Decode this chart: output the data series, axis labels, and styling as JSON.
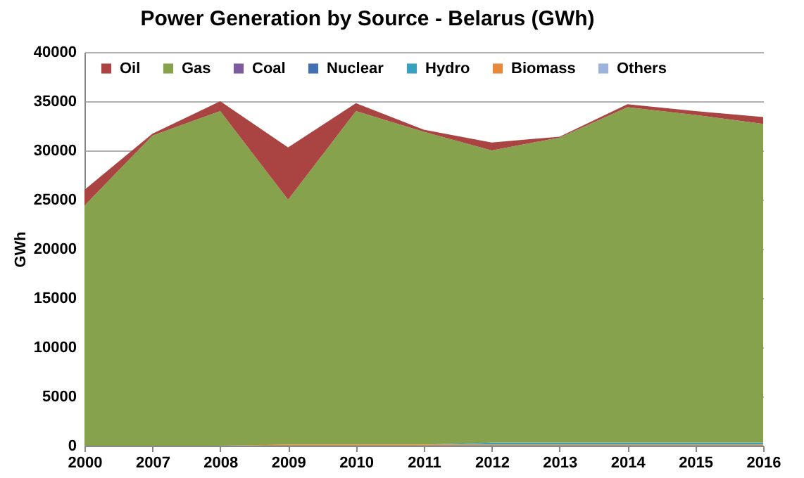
{
  "chart_data": {
    "type": "area",
    "title": "Power Generation by Source - Belarus (GWh)",
    "ylabel": "GWh",
    "stacked": true,
    "categories": [
      "2000",
      "2007",
      "2008",
      "2009",
      "2010",
      "2011",
      "2012",
      "2013",
      "2014",
      "2015",
      "2016"
    ],
    "series": [
      {
        "name": "Others",
        "color": "#9db3dc",
        "values": [
          null,
          null,
          null,
          null,
          null,
          null,
          null,
          null,
          null,
          null,
          null
        ]
      },
      {
        "name": "Biomass",
        "color": "#e8883a",
        "values": [
          0,
          0,
          0,
          100,
          100,
          100,
          100,
          100,
          100,
          100,
          100
        ]
      },
      {
        "name": "Hydro",
        "color": "#3aa0c0",
        "values": [
          0,
          0,
          0,
          0,
          0,
          0,
          200,
          200,
          200,
          200,
          200
        ]
      },
      {
        "name": "Nuclear",
        "color": "#4270b0",
        "values": [
          null,
          null,
          null,
          null,
          null,
          null,
          null,
          null,
          null,
          null,
          null
        ]
      },
      {
        "name": "Coal",
        "color": "#7c5c9e",
        "values": [
          null,
          null,
          null,
          null,
          null,
          null,
          null,
          null,
          null,
          null,
          null
        ]
      },
      {
        "name": "Gas",
        "color": "#86a24d",
        "values": [
          24400,
          31500,
          34000,
          24900,
          33900,
          31800,
          29700,
          31000,
          34100,
          33300,
          32400
        ]
      },
      {
        "name": "Oil",
        "color": "#a94442",
        "values": [
          1600,
          200,
          1000,
          5300,
          800,
          200,
          800,
          100,
          300,
          400,
          700
        ]
      }
    ],
    "ylim": [
      0,
      40000
    ],
    "yticks": [
      0,
      5000,
      10000,
      15000,
      20000,
      25000,
      30000,
      35000,
      40000
    ],
    "grid": "y",
    "legend": "top"
  }
}
